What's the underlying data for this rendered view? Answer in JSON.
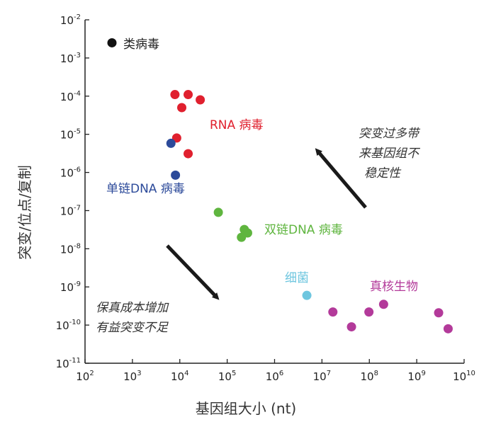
{
  "chart_data": {
    "type": "scatter",
    "title": "",
    "xlabel": "基因组大小 (nt)",
    "ylabel": "突变/位点/复制",
    "x_scale": "log",
    "y_scale": "log",
    "xlim": [
      100,
      10000000000
    ],
    "ylim": [
      1e-11,
      0.01
    ],
    "grid": false,
    "x_ticks": [
      "10^2",
      "10^3",
      "10^4",
      "10^5",
      "10^6",
      "10^7",
      "10^8",
      "10^9",
      "10^10"
    ],
    "y_ticks": [
      "10^-2",
      "10^-3",
      "10^-4",
      "10^-5",
      "10^-6",
      "10^-7",
      "10^-8",
      "10^-9",
      "10^-10",
      "10^-11"
    ],
    "x_tick_bases": [
      "10",
      "10",
      "10",
      "10",
      "10",
      "10",
      "10",
      "10",
      "10"
    ],
    "x_tick_exps": [
      "2",
      "3",
      "4",
      "5",
      "6",
      "7",
      "8",
      "9",
      "10"
    ],
    "y_tick_bases": [
      "10",
      "10",
      "10",
      "10",
      "10",
      "10",
      "10",
      "10",
      "10",
      "10"
    ],
    "y_tick_exps": [
      "-2",
      "-3",
      "-4",
      "-5",
      "-6",
      "-7",
      "-8",
      "-9",
      "-10",
      "-11"
    ],
    "series": [
      {
        "name": "类病毒",
        "color": "#111111",
        "points": [
          [
            370,
            0.0025
          ]
        ]
      },
      {
        "name": "RNA 病毒",
        "color": "#e0202e",
        "points": [
          [
            7900,
            0.00011
          ],
          [
            15000,
            0.00011
          ],
          [
            27000,
            8e-05
          ],
          [
            11000,
            5e-05
          ],
          [
            8600,
            8e-06
          ],
          [
            15000,
            3.1e-06
          ]
        ]
      },
      {
        "name": "单链DNA 病毒",
        "color": "#2c4a9a",
        "points": [
          [
            6500,
            5.8e-06
          ],
          [
            8100,
            8.5e-07
          ]
        ]
      },
      {
        "name": "双链DNA 病毒",
        "color": "#5fb53f",
        "points": [
          [
            65000,
            9e-08
          ],
          [
            230000,
            3.2e-08
          ],
          [
            270000,
            2.6e-08
          ],
          [
            200000,
            2e-08
          ]
        ]
      },
      {
        "name": "细菌",
        "color": "#6ec6df",
        "points": [
          [
            4800000,
            6e-10
          ]
        ]
      },
      {
        "name": "真核生物",
        "color": "#b33a9a",
        "points": [
          [
            17000000,
            2.2e-10
          ],
          [
            42000000,
            9e-11
          ],
          [
            98000000,
            2.2e-10
          ],
          [
            200000000,
            3.5e-10
          ],
          [
            2900000000,
            2.1e-10
          ],
          [
            4600000000,
            8e-11
          ]
        ]
      }
    ],
    "annotations": [
      {
        "text_lines": [
          "突变过多带",
          "来基因组不",
          "稳定性"
        ]
      },
      {
        "text_lines": [
          "保真成本增加",
          "有益突变不足"
        ]
      }
    ]
  }
}
